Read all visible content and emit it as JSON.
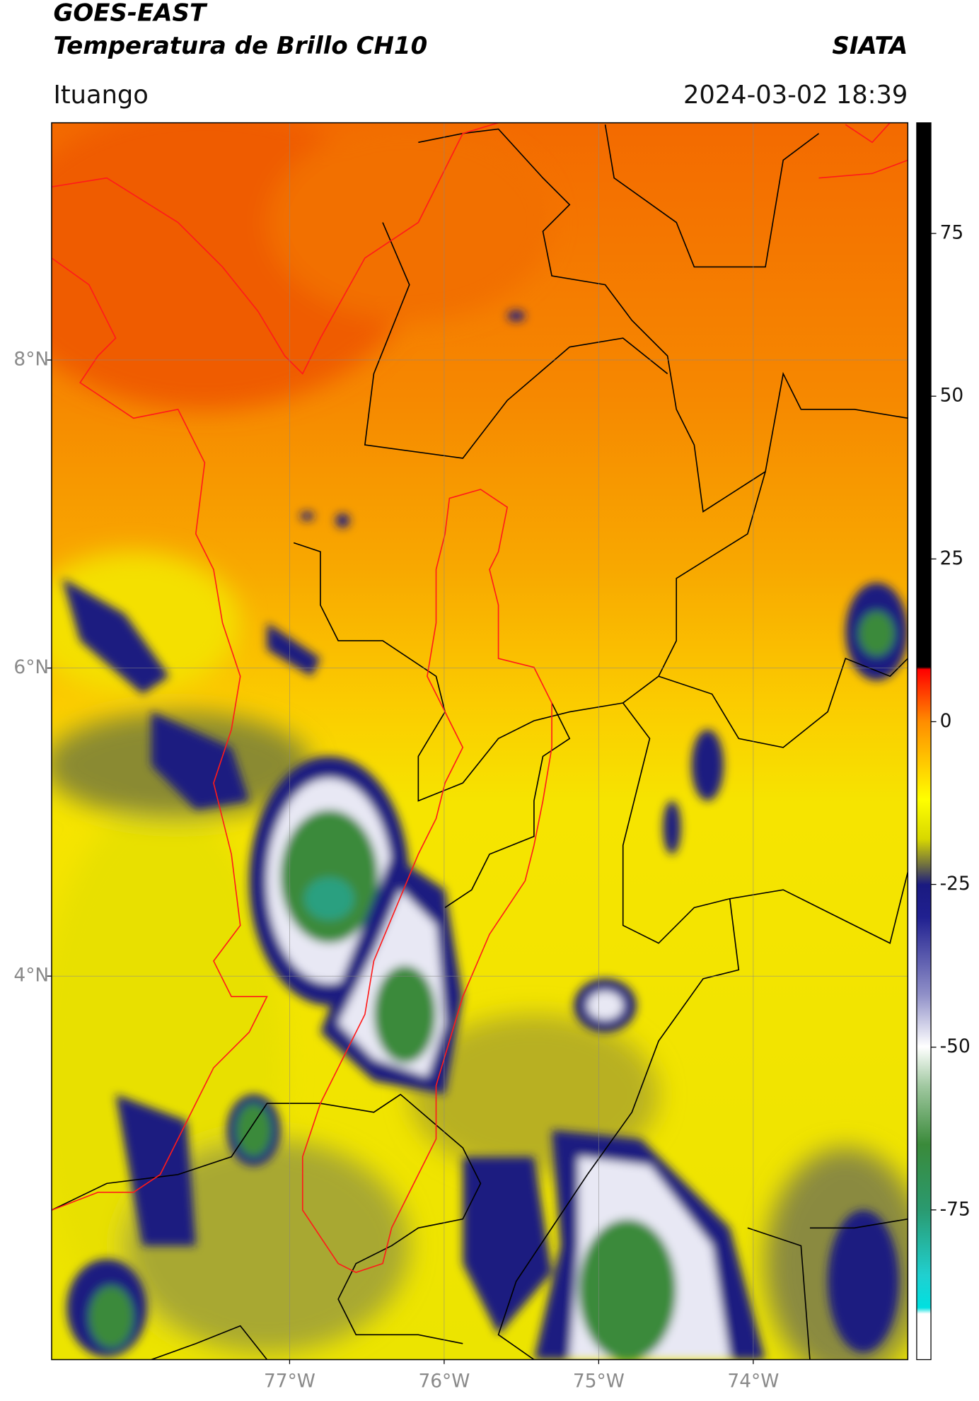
{
  "map": {
    "title": "GOES-EAST",
    "subtitle": "Temperatura de Brillo CH10",
    "source": "SIATA",
    "location": "Ituango",
    "datetime": "2024-03-02 18:39",
    "xlim": [
      -78.54,
      -73.0
    ],
    "ylim": [
      1.51,
      9.54
    ],
    "xticks": [
      {
        "value": -77,
        "label": "77°W"
      },
      {
        "value": -76,
        "label": "76°W"
      },
      {
        "value": -75,
        "label": "75°W"
      },
      {
        "value": -74,
        "label": "74°W"
      }
    ],
    "yticks": [
      {
        "value": 8,
        "label": "8°N"
      },
      {
        "value": 6,
        "label": "6°N"
      },
      {
        "value": 4,
        "label": "4°N"
      }
    ],
    "grid": true
  },
  "colorbar": {
    "clim": [
      -98,
      92
    ],
    "ticks": [
      75,
      50,
      25,
      0,
      -25,
      -50,
      -75
    ]
  }
}
